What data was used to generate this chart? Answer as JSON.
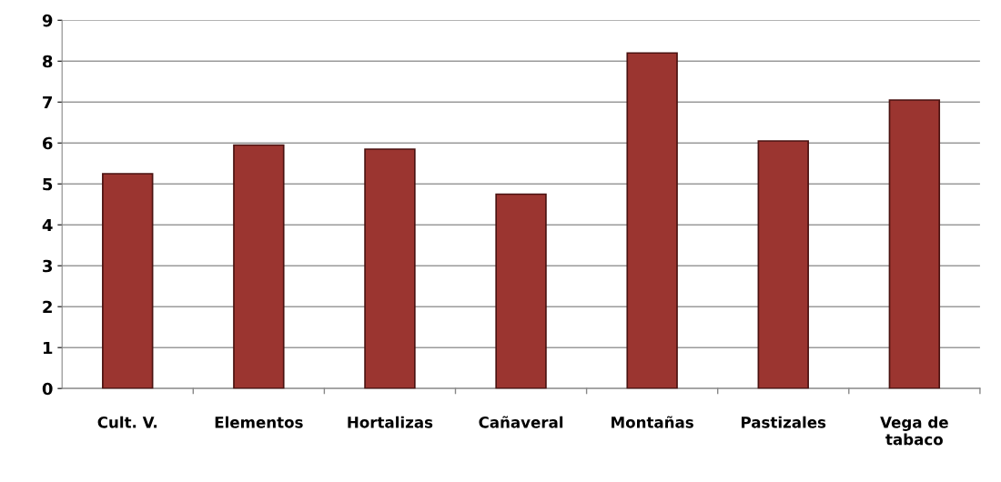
{
  "chart_data": {
    "type": "bar",
    "categories": [
      "Cult. V.",
      "Elementos",
      "Hortalizas",
      "Cañaveral",
      "Montañas",
      "Pastizales",
      "Vega de\ntabaco"
    ],
    "values": [
      5.25,
      5.95,
      5.85,
      4.75,
      8.2,
      6.05,
      7.05
    ],
    "color": "#9b3530",
    "ylim": [
      0,
      9
    ],
    "yticks": [
      0,
      1,
      2,
      3,
      4,
      5,
      6,
      7,
      8,
      9
    ],
    "grid": "y"
  }
}
